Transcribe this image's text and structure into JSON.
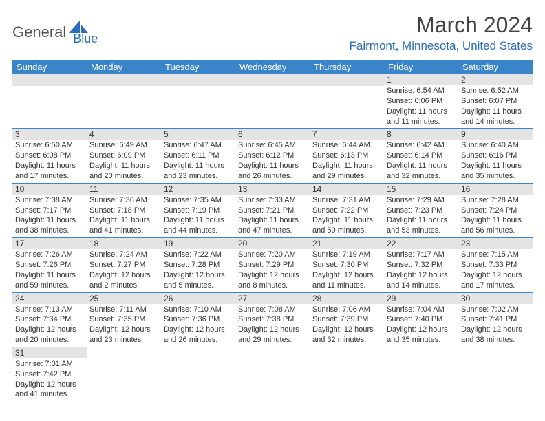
{
  "logo": {
    "part1": "General",
    "part2": "Blue"
  },
  "title": "March 2024",
  "location": "Fairmont, Minnesota, United States",
  "colors": {
    "header_bg": "#3a84c9",
    "header_fg": "#ffffff",
    "accent": "#2a6db8",
    "daynum_bg": "#e4e4e4",
    "text": "#333333",
    "logo_gray": "#555555"
  },
  "day_headers": [
    "Sunday",
    "Monday",
    "Tuesday",
    "Wednesday",
    "Thursday",
    "Friday",
    "Saturday"
  ],
  "weeks": [
    [
      {
        "empty": true
      },
      {
        "empty": true
      },
      {
        "empty": true
      },
      {
        "empty": true
      },
      {
        "empty": true
      },
      {
        "n": "1",
        "sr": "Sunrise: 6:54 AM",
        "ss": "Sunset: 6:06 PM",
        "d1": "Daylight: 11 hours",
        "d2": "and 11 minutes."
      },
      {
        "n": "2",
        "sr": "Sunrise: 6:52 AM",
        "ss": "Sunset: 6:07 PM",
        "d1": "Daylight: 11 hours",
        "d2": "and 14 minutes."
      }
    ],
    [
      {
        "n": "3",
        "sr": "Sunrise: 6:50 AM",
        "ss": "Sunset: 6:08 PM",
        "d1": "Daylight: 11 hours",
        "d2": "and 17 minutes."
      },
      {
        "n": "4",
        "sr": "Sunrise: 6:49 AM",
        "ss": "Sunset: 6:09 PM",
        "d1": "Daylight: 11 hours",
        "d2": "and 20 minutes."
      },
      {
        "n": "5",
        "sr": "Sunrise: 6:47 AM",
        "ss": "Sunset: 6:11 PM",
        "d1": "Daylight: 11 hours",
        "d2": "and 23 minutes."
      },
      {
        "n": "6",
        "sr": "Sunrise: 6:45 AM",
        "ss": "Sunset: 6:12 PM",
        "d1": "Daylight: 11 hours",
        "d2": "and 26 minutes."
      },
      {
        "n": "7",
        "sr": "Sunrise: 6:44 AM",
        "ss": "Sunset: 6:13 PM",
        "d1": "Daylight: 11 hours",
        "d2": "and 29 minutes."
      },
      {
        "n": "8",
        "sr": "Sunrise: 6:42 AM",
        "ss": "Sunset: 6:14 PM",
        "d1": "Daylight: 11 hours",
        "d2": "and 32 minutes."
      },
      {
        "n": "9",
        "sr": "Sunrise: 6:40 AM",
        "ss": "Sunset: 6:16 PM",
        "d1": "Daylight: 11 hours",
        "d2": "and 35 minutes."
      }
    ],
    [
      {
        "n": "10",
        "sr": "Sunrise: 7:38 AM",
        "ss": "Sunset: 7:17 PM",
        "d1": "Daylight: 11 hours",
        "d2": "and 38 minutes."
      },
      {
        "n": "11",
        "sr": "Sunrise: 7:36 AM",
        "ss": "Sunset: 7:18 PM",
        "d1": "Daylight: 11 hours",
        "d2": "and 41 minutes."
      },
      {
        "n": "12",
        "sr": "Sunrise: 7:35 AM",
        "ss": "Sunset: 7:19 PM",
        "d1": "Daylight: 11 hours",
        "d2": "and 44 minutes."
      },
      {
        "n": "13",
        "sr": "Sunrise: 7:33 AM",
        "ss": "Sunset: 7:21 PM",
        "d1": "Daylight: 11 hours",
        "d2": "and 47 minutes."
      },
      {
        "n": "14",
        "sr": "Sunrise: 7:31 AM",
        "ss": "Sunset: 7:22 PM",
        "d1": "Daylight: 11 hours",
        "d2": "and 50 minutes."
      },
      {
        "n": "15",
        "sr": "Sunrise: 7:29 AM",
        "ss": "Sunset: 7:23 PM",
        "d1": "Daylight: 11 hours",
        "d2": "and 53 minutes."
      },
      {
        "n": "16",
        "sr": "Sunrise: 7:28 AM",
        "ss": "Sunset: 7:24 PM",
        "d1": "Daylight: 11 hours",
        "d2": "and 56 minutes."
      }
    ],
    [
      {
        "n": "17",
        "sr": "Sunrise: 7:26 AM",
        "ss": "Sunset: 7:26 PM",
        "d1": "Daylight: 11 hours",
        "d2": "and 59 minutes."
      },
      {
        "n": "18",
        "sr": "Sunrise: 7:24 AM",
        "ss": "Sunset: 7:27 PM",
        "d1": "Daylight: 12 hours",
        "d2": "and 2 minutes."
      },
      {
        "n": "19",
        "sr": "Sunrise: 7:22 AM",
        "ss": "Sunset: 7:28 PM",
        "d1": "Daylight: 12 hours",
        "d2": "and 5 minutes."
      },
      {
        "n": "20",
        "sr": "Sunrise: 7:20 AM",
        "ss": "Sunset: 7:29 PM",
        "d1": "Daylight: 12 hours",
        "d2": "and 8 minutes."
      },
      {
        "n": "21",
        "sr": "Sunrise: 7:19 AM",
        "ss": "Sunset: 7:30 PM",
        "d1": "Daylight: 12 hours",
        "d2": "and 11 minutes."
      },
      {
        "n": "22",
        "sr": "Sunrise: 7:17 AM",
        "ss": "Sunset: 7:32 PM",
        "d1": "Daylight: 12 hours",
        "d2": "and 14 minutes."
      },
      {
        "n": "23",
        "sr": "Sunrise: 7:15 AM",
        "ss": "Sunset: 7:33 PM",
        "d1": "Daylight: 12 hours",
        "d2": "and 17 minutes."
      }
    ],
    [
      {
        "n": "24",
        "sr": "Sunrise: 7:13 AM",
        "ss": "Sunset: 7:34 PM",
        "d1": "Daylight: 12 hours",
        "d2": "and 20 minutes."
      },
      {
        "n": "25",
        "sr": "Sunrise: 7:11 AM",
        "ss": "Sunset: 7:35 PM",
        "d1": "Daylight: 12 hours",
        "d2": "and 23 minutes."
      },
      {
        "n": "26",
        "sr": "Sunrise: 7:10 AM",
        "ss": "Sunset: 7:36 PM",
        "d1": "Daylight: 12 hours",
        "d2": "and 26 minutes."
      },
      {
        "n": "27",
        "sr": "Sunrise: 7:08 AM",
        "ss": "Sunset: 7:38 PM",
        "d1": "Daylight: 12 hours",
        "d2": "and 29 minutes."
      },
      {
        "n": "28",
        "sr": "Sunrise: 7:06 AM",
        "ss": "Sunset: 7:39 PM",
        "d1": "Daylight: 12 hours",
        "d2": "and 32 minutes."
      },
      {
        "n": "29",
        "sr": "Sunrise: 7:04 AM",
        "ss": "Sunset: 7:40 PM",
        "d1": "Daylight: 12 hours",
        "d2": "and 35 minutes."
      },
      {
        "n": "30",
        "sr": "Sunrise: 7:02 AM",
        "ss": "Sunset: 7:41 PM",
        "d1": "Daylight: 12 hours",
        "d2": "and 38 minutes."
      }
    ],
    [
      {
        "n": "31",
        "sr": "Sunrise: 7:01 AM",
        "ss": "Sunset: 7:42 PM",
        "d1": "Daylight: 12 hours",
        "d2": "and 41 minutes."
      },
      {
        "empty": true
      },
      {
        "empty": true
      },
      {
        "empty": true
      },
      {
        "empty": true
      },
      {
        "empty": true
      },
      {
        "empty": true
      }
    ]
  ]
}
